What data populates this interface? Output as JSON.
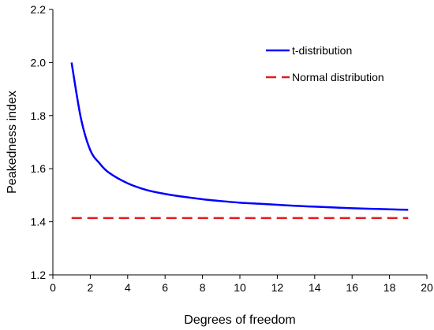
{
  "chart_data": {
    "type": "line",
    "title": "",
    "xlabel": "Degrees of freedom",
    "ylabel": "Peakedness index",
    "xlim": [
      0,
      20
    ],
    "ylim": [
      1.2,
      2.2
    ],
    "x_ticks": [
      0,
      2,
      4,
      6,
      8,
      10,
      12,
      14,
      16,
      18,
      20
    ],
    "y_ticks": [
      1.2,
      1.4,
      1.6,
      1.8,
      2.0,
      2.2
    ],
    "x_tick_labels": [
      "0",
      "2",
      "4",
      "6",
      "8",
      "10",
      "12",
      "14",
      "16",
      "18",
      "20"
    ],
    "y_tick_labels": [
      "1.2",
      "1.4",
      "1.6",
      "1.8",
      "2.0",
      "2.2"
    ],
    "grid": false,
    "legend_position": "top-right",
    "series": [
      {
        "name": "t-distribution",
        "color": "#0000ff",
        "style": "solid",
        "x": [
          1,
          1.5,
          2,
          2.5,
          3,
          4,
          5,
          6,
          7,
          8,
          9,
          10,
          11,
          12,
          13,
          14,
          15,
          16,
          17,
          18,
          19
        ],
        "y": [
          2.0,
          1.79,
          1.67,
          1.62,
          1.585,
          1.545,
          1.52,
          1.505,
          1.494,
          1.485,
          1.478,
          1.472,
          1.468,
          1.464,
          1.46,
          1.457,
          1.454,
          1.451,
          1.449,
          1.447,
          1.445
        ]
      },
      {
        "name": "Normal distribution",
        "color": "#e31a1c",
        "style": "dashed",
        "x": [
          1,
          19
        ],
        "y": [
          1.414,
          1.414
        ]
      }
    ]
  }
}
